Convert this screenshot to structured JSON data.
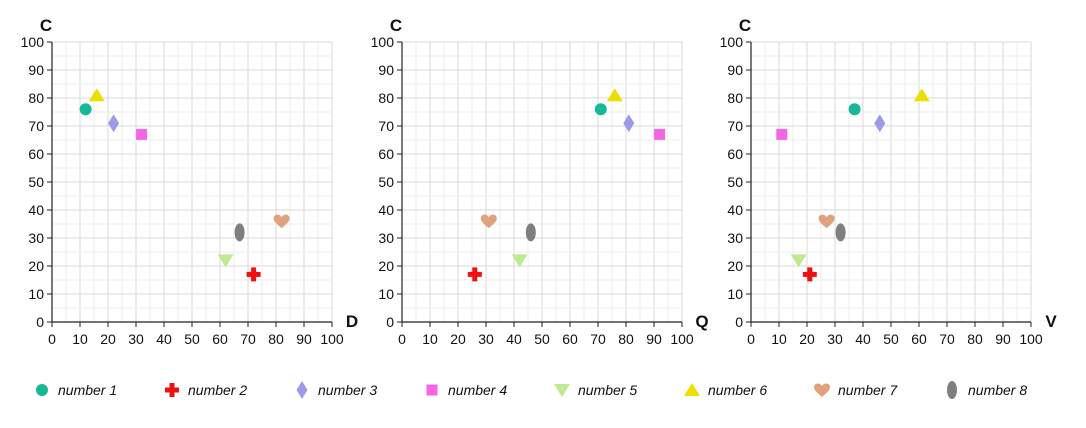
{
  "chart_data": {
    "type": "scatter",
    "grid": true,
    "legend_position": "bottom",
    "series": [
      {
        "name": "number 1",
        "shape": "circle",
        "color": "#17b897"
      },
      {
        "name": "number 2",
        "shape": "cross",
        "color": "#ee1111"
      },
      {
        "name": "number 3",
        "shape": "diamond",
        "color": "#9b9be8"
      },
      {
        "name": "number 4",
        "shape": "square",
        "color": "#f566e6"
      },
      {
        "name": "number 5",
        "shape": "triangle-down",
        "color": "#c0ea92"
      },
      {
        "name": "number 6",
        "shape": "triangle-up",
        "color": "#ecdf00"
      },
      {
        "name": "number 7",
        "shape": "heart",
        "color": "#e0a27e"
      },
      {
        "name": "number 8",
        "shape": "ellipse",
        "color": "#7f7f7f"
      }
    ],
    "panels": [
      {
        "xlabel": "D",
        "ylabel": "C",
        "xlim": [
          0,
          100
        ],
        "ylim": [
          0,
          100
        ],
        "xticks": [
          "0",
          "10",
          "20",
          "30",
          "40",
          "50",
          "60",
          "70",
          "80",
          "90",
          "100"
        ],
        "yticks": [
          "0",
          "10",
          "20",
          "30",
          "40",
          "50",
          "60",
          "70",
          "80",
          "90",
          "100"
        ],
        "points": [
          [
            12,
            76
          ],
          [
            72,
            17
          ],
          [
            22,
            71
          ],
          [
            32,
            67
          ],
          [
            62,
            22
          ],
          [
            16,
            81
          ],
          [
            82,
            36
          ],
          [
            67,
            32
          ]
        ]
      },
      {
        "xlabel": "Q",
        "ylabel": "C",
        "xlim": [
          0,
          100
        ],
        "ylim": [
          0,
          100
        ],
        "xticks": [
          "0",
          "10",
          "20",
          "30",
          "40",
          "50",
          "60",
          "70",
          "80",
          "90",
          "100"
        ],
        "yticks": [
          "0",
          "10",
          "20",
          "30",
          "40",
          "50",
          "60",
          "70",
          "80",
          "90",
          "100"
        ],
        "points": [
          [
            71,
            76
          ],
          [
            26,
            17
          ],
          [
            81,
            71
          ],
          [
            92,
            67
          ],
          [
            42,
            22
          ],
          [
            76,
            81
          ],
          [
            31,
            36
          ],
          [
            46,
            32
          ]
        ]
      },
      {
        "xlabel": "V",
        "ylabel": "C",
        "xlim": [
          0,
          100
        ],
        "ylim": [
          0,
          100
        ],
        "xticks": [
          "0",
          "10",
          "20",
          "30",
          "40",
          "50",
          "60",
          "70",
          "80",
          "90",
          "100"
        ],
        "yticks": [
          "0",
          "10",
          "20",
          "30",
          "40",
          "50",
          "60",
          "70",
          "80",
          "90",
          "100"
        ],
        "points": [
          [
            37,
            76
          ],
          [
            21,
            17
          ],
          [
            46,
            71
          ],
          [
            11,
            67
          ],
          [
            17,
            22
          ],
          [
            61,
            81
          ],
          [
            27,
            36
          ],
          [
            32,
            32
          ]
        ]
      }
    ]
  }
}
